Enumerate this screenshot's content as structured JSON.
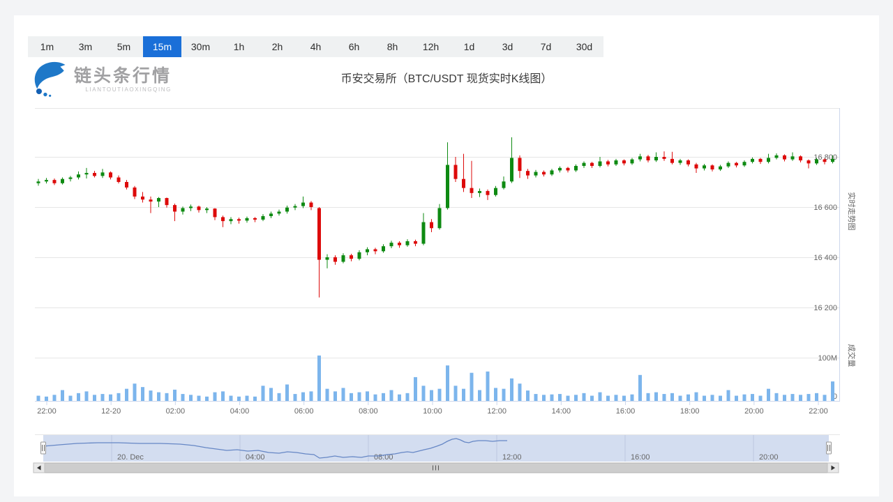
{
  "page": {
    "bg": "#f3f4f6",
    "card_bg": "#ffffff"
  },
  "toolbar": {
    "timeframes": [
      "1m",
      "3m",
      "5m",
      "15m",
      "30m",
      "1h",
      "2h",
      "4h",
      "6h",
      "8h",
      "12h",
      "1d",
      "3d",
      "7d",
      "30d"
    ],
    "active": "15m",
    "active_bg": "#1a6fd8"
  },
  "brand": {
    "name": "链头条行情",
    "subtitle": "LIANTOUTIAOXINGQING",
    "icon": "whale-logo-icon",
    "color": "#1e78c8"
  },
  "header": {
    "title": "币安交易所（BTC/USDT 现货实时K线图）"
  },
  "chart_data": {
    "type": "candlestick+volume",
    "title": "币安交易所（BTC/USDT 现货实时K线图）",
    "interval": "15m",
    "start_time": "12-19 21:45",
    "interval_minutes": 15,
    "up_color": "#0e8a12",
    "down_color": "#dd0a0a",
    "volume_color": "#7cb5ec",
    "grid_color": "#e6e6e6",
    "axis_line_color": "#ccd6eb",
    "label_color": "#666666",
    "price_axis": {
      "side": "right",
      "title": "实时走势图",
      "labels": [
        "16 800",
        "16 600",
        "16 400",
        "16 200"
      ],
      "values": [
        16800,
        16600,
        16400,
        16200
      ]
    },
    "volume_axis": {
      "side": "right",
      "title": "成交量",
      "labels": [
        "100M",
        "0"
      ],
      "values": [
        100,
        0
      ]
    },
    "x_axis": {
      "labels": [
        "22:00",
        "12-20",
        "02:00",
        "04:00",
        "06:00",
        "08:00",
        "10:00",
        "12:00",
        "14:00",
        "16:00",
        "18:00",
        "20:00",
        "22:00"
      ]
    },
    "candles_format": [
      "open",
      "high",
      "low",
      "close",
      "volume_M"
    ],
    "candles": [
      [
        16695,
        16712,
        16685,
        16702,
        12
      ],
      [
        16702,
        16716,
        16694,
        16708,
        10
      ],
      [
        16708,
        16714,
        16688,
        16695,
        14
      ],
      [
        16695,
        16718,
        16690,
        16712,
        25
      ],
      [
        16712,
        16724,
        16702,
        16718,
        12
      ],
      [
        16718,
        16742,
        16710,
        16730,
        18
      ],
      [
        16730,
        16756,
        16714,
        16736,
        22
      ],
      [
        16736,
        16744,
        16718,
        16724,
        14
      ],
      [
        16724,
        16752,
        16716,
        16738,
        16
      ],
      [
        16738,
        16742,
        16710,
        16718,
        15
      ],
      [
        16718,
        16726,
        16694,
        16700,
        18
      ],
      [
        16700,
        16708,
        16670,
        16678,
        28
      ],
      [
        16678,
        16684,
        16632,
        16642,
        40
      ],
      [
        16642,
        16660,
        16618,
        16630,
        32
      ],
      [
        16630,
        16642,
        16576,
        16622,
        24
      ],
      [
        16622,
        16640,
        16600,
        16636,
        20
      ],
      [
        16636,
        16638,
        16598,
        16608,
        18
      ],
      [
        16608,
        16614,
        16544,
        16582,
        26
      ],
      [
        16582,
        16602,
        16570,
        16596,
        16
      ],
      [
        16596,
        16610,
        16584,
        16602,
        14
      ],
      [
        16602,
        16606,
        16578,
        16588,
        12
      ],
      [
        16588,
        16600,
        16576,
        16594,
        10
      ],
      [
        16594,
        16596,
        16548,
        16560,
        20
      ],
      [
        16560,
        16566,
        16520,
        16544,
        22
      ],
      [
        16544,
        16560,
        16532,
        16552,
        12
      ],
      [
        16552,
        16558,
        16534,
        16546,
        10
      ],
      [
        16546,
        16562,
        16538,
        16556,
        12
      ],
      [
        16556,
        16560,
        16540,
        16550,
        10
      ],
      [
        16550,
        16572,
        16544,
        16564,
        35
      ],
      [
        16564,
        16582,
        16556,
        16574,
        30
      ],
      [
        16574,
        16590,
        16566,
        16582,
        18
      ],
      [
        16582,
        16606,
        16574,
        16598,
        38
      ],
      [
        16598,
        16612,
        16588,
        16604,
        16
      ],
      [
        16604,
        16642,
        16596,
        16618,
        20
      ],
      [
        16618,
        16624,
        16588,
        16600,
        22
      ],
      [
        16596,
        16600,
        16240,
        16390,
        105
      ],
      [
        16390,
        16412,
        16356,
        16400,
        28
      ],
      [
        16400,
        16408,
        16370,
        16382,
        22
      ],
      [
        16382,
        16416,
        16376,
        16408,
        30
      ],
      [
        16408,
        16414,
        16384,
        16394,
        18
      ],
      [
        16394,
        16428,
        16388,
        16420,
        20
      ],
      [
        16420,
        16440,
        16408,
        16432,
        22
      ],
      [
        16432,
        16438,
        16412,
        16424,
        15
      ],
      [
        16424,
        16452,
        16418,
        16444,
        18
      ],
      [
        16444,
        16466,
        16436,
        16458,
        25
      ],
      [
        16458,
        16464,
        16438,
        16448,
        15
      ],
      [
        16448,
        16472,
        16442,
        16464,
        18
      ],
      [
        16464,
        16470,
        16444,
        16454,
        55
      ],
      [
        16454,
        16576,
        16448,
        16540,
        35
      ],
      [
        16540,
        16552,
        16500,
        16516,
        25
      ],
      [
        16516,
        16612,
        16510,
        16596,
        28
      ],
      [
        16596,
        16858,
        16590,
        16768,
        82
      ],
      [
        16768,
        16800,
        16700,
        16712,
        35
      ],
      [
        16712,
        16812,
        16660,
        16676,
        28
      ],
      [
        16676,
        16784,
        16636,
        16656,
        65
      ],
      [
        16656,
        16674,
        16640,
        16664,
        25
      ],
      [
        16664,
        16670,
        16628,
        16648,
        68
      ],
      [
        16648,
        16684,
        16642,
        16676,
        30
      ],
      [
        16676,
        16722,
        16670,
        16702,
        28
      ],
      [
        16702,
        16878,
        16696,
        16796,
        52
      ],
      [
        16796,
        16806,
        16716,
        16744,
        40
      ],
      [
        16744,
        16752,
        16712,
        16726,
        24
      ],
      [
        16726,
        16748,
        16718,
        16740,
        16
      ],
      [
        16740,
        16746,
        16722,
        16730,
        14
      ],
      [
        16730,
        16752,
        16724,
        16746,
        15
      ],
      [
        16746,
        16762,
        16738,
        16756,
        16
      ],
      [
        16756,
        16760,
        16738,
        16746,
        12
      ],
      [
        16746,
        16770,
        16740,
        16764,
        14
      ],
      [
        16764,
        16782,
        16756,
        16776,
        18
      ],
      [
        16776,
        16780,
        16756,
        16764,
        12
      ],
      [
        16764,
        16800,
        16758,
        16782,
        20
      ],
      [
        16782,
        16788,
        16762,
        16770,
        12
      ],
      [
        16770,
        16792,
        16764,
        16786,
        14
      ],
      [
        16786,
        16790,
        16766,
        16774,
        12
      ],
      [
        16774,
        16796,
        16768,
        16790,
        15
      ],
      [
        16790,
        16812,
        16782,
        16802,
        60
      ],
      [
        16802,
        16808,
        16778,
        16786,
        18
      ],
      [
        16786,
        16818,
        16780,
        16800,
        20
      ],
      [
        16800,
        16822,
        16784,
        16792,
        16
      ],
      [
        16792,
        16820,
        16770,
        16776,
        18
      ],
      [
        16776,
        16792,
        16768,
        16786,
        12
      ],
      [
        16786,
        16790,
        16762,
        16770,
        15
      ],
      [
        16770,
        16776,
        16736,
        16754,
        20
      ],
      [
        16754,
        16772,
        16746,
        16766,
        12
      ],
      [
        16766,
        16770,
        16742,
        16750,
        14
      ],
      [
        16750,
        16768,
        16744,
        16762,
        12
      ],
      [
        16762,
        16782,
        16756,
        16776,
        25
      ],
      [
        16776,
        16780,
        16758,
        16766,
        12
      ],
      [
        16766,
        16786,
        16760,
        16780,
        15
      ],
      [
        16780,
        16798,
        16774,
        16792,
        16
      ],
      [
        16792,
        16796,
        16772,
        16780,
        12
      ],
      [
        16780,
        16812,
        16774,
        16796,
        28
      ],
      [
        16796,
        16814,
        16790,
        16806,
        18
      ],
      [
        16806,
        16810,
        16782,
        16790,
        14
      ],
      [
        16790,
        16818,
        16784,
        16802,
        16
      ],
      [
        16802,
        16806,
        16778,
        16786,
        14
      ],
      [
        16786,
        16790,
        16754,
        16774,
        16
      ],
      [
        16774,
        16796,
        16768,
        16790,
        18
      ],
      [
        16790,
        16794,
        16770,
        16780,
        14
      ],
      [
        16780,
        16806,
        16774,
        16792,
        45
      ]
    ]
  },
  "navigator": {
    "labels": [
      "20. Dec",
      "04:00",
      "08:00",
      "12:00",
      "16:00",
      "20:00"
    ],
    "bg": "#d3ddf0",
    "line_color": "#6687c5",
    "grid_color": "#9fb0cf",
    "line_points": [
      [
        62,
        640
      ],
      [
        85,
        638
      ],
      [
        110,
        636
      ],
      [
        140,
        635
      ],
      [
        170,
        635
      ],
      [
        200,
        636
      ],
      [
        230,
        636
      ],
      [
        258,
        637
      ],
      [
        278,
        639
      ],
      [
        295,
        642
      ],
      [
        310,
        644
      ],
      [
        325,
        646
      ],
      [
        340,
        645
      ],
      [
        355,
        647
      ],
      [
        370,
        646
      ],
      [
        385,
        649
      ],
      [
        400,
        650
      ],
      [
        412,
        648
      ],
      [
        425,
        649
      ],
      [
        438,
        651
      ],
      [
        450,
        652
      ],
      [
        458,
        657
      ],
      [
        468,
        656
      ],
      [
        480,
        654
      ],
      [
        492,
        656
      ],
      [
        505,
        655
      ],
      [
        518,
        656
      ],
      [
        528,
        654
      ],
      [
        542,
        654
      ],
      [
        555,
        652
      ],
      [
        566,
        651
      ],
      [
        576,
        649
      ],
      [
        584,
        648
      ],
      [
        592,
        649
      ],
      [
        600,
        647
      ],
      [
        608,
        645
      ],
      [
        617,
        643
      ],
      [
        626,
        640
      ],
      [
        634,
        637
      ],
      [
        641,
        633
      ],
      [
        648,
        630
      ],
      [
        654,
        629
      ],
      [
        660,
        631
      ],
      [
        666,
        634
      ],
      [
        672,
        635
      ],
      [
        678,
        633
      ],
      [
        686,
        632
      ],
      [
        696,
        632
      ],
      [
        706,
        633
      ],
      [
        716,
        632
      ],
      [
        727,
        632
      ]
    ]
  },
  "scrollbar": {
    "track_color": "#f0f0f0",
    "thumb_color": "#cdcdcd",
    "icons": {
      "left_arrow": "◄",
      "right_arrow": "►",
      "grip": "|||"
    }
  }
}
